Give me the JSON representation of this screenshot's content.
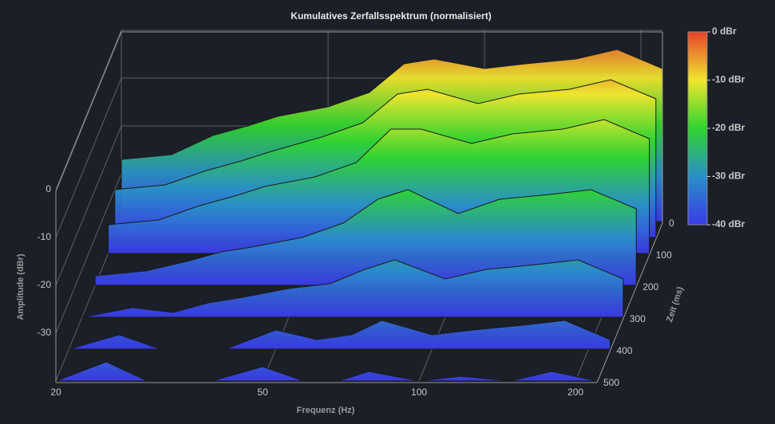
{
  "chart_data": {
    "type": "waterfall",
    "title": "Kumulatives Zerfallsspektrum (normalisiert)",
    "x_label": "Frequenz (Hz)",
    "y_label": "Amplitude (dBr)",
    "z_label": "Zeit (ms)",
    "x_log": true,
    "x": [
      20,
      25,
      30,
      35,
      40,
      50,
      60,
      70,
      80,
      100,
      120,
      150,
      180,
      220
    ],
    "z": [
      0,
      50,
      100,
      200,
      300,
      400,
      500
    ],
    "values": [
      [
        -27,
        -26,
        -22,
        -20,
        -18,
        -16,
        -13,
        -7,
        -6,
        -8,
        -7,
        -6,
        -4,
        -8
      ],
      [
        -30,
        -29,
        -26,
        -24,
        -22,
        -19,
        -16,
        -10,
        -9,
        -12,
        -10,
        -9,
        -7,
        -11
      ],
      [
        -34,
        -33,
        -30,
        -28,
        -26,
        -24,
        -21,
        -14,
        -14,
        -17,
        -15,
        -14,
        -12,
        -16
      ],
      [
        -38,
        -37,
        -35,
        -33,
        -32,
        -30,
        -27,
        -22,
        -20,
        -25,
        -22,
        -21,
        -20,
        -24
      ],
      [
        -40,
        -38,
        -39,
        -37,
        -36,
        -34,
        -33,
        -30,
        -28,
        -32,
        -30,
        -29,
        -28,
        -32
      ],
      [
        -40,
        -37,
        -40,
        -40,
        -40,
        -36,
        -38,
        -37,
        -34,
        -37,
        -36,
        -35,
        -34,
        -38
      ],
      [
        -40,
        -36,
        -40,
        -40,
        -40,
        -37,
        -40,
        -40,
        -38,
        -40,
        -39,
        -40,
        -38,
        -40
      ]
    ],
    "xlim": [
      20,
      220
    ],
    "xticks": [
      20,
      50,
      100,
      200
    ],
    "ylim": [
      -40,
      0
    ],
    "yticks": [
      0,
      -10,
      -20,
      -30
    ],
    "zlim": [
      0,
      500
    ],
    "zticks": [
      0,
      100,
      200,
      300,
      400,
      500
    ],
    "colorscale": [
      "#e8412b",
      "#f0e62e",
      "#2fd42f",
      "#2a8fc8",
      "#3a3ae8"
    ],
    "colorbar_ticks": [
      {
        "value": 0,
        "label": "0 dBr"
      },
      {
        "value": -10,
        "label": "-10 dBr"
      },
      {
        "value": -20,
        "label": "-20 dBr"
      },
      {
        "value": -30,
        "label": "-30 dBr"
      },
      {
        "value": -40,
        "label": "-40 dBr"
      }
    ],
    "grid": true
  }
}
